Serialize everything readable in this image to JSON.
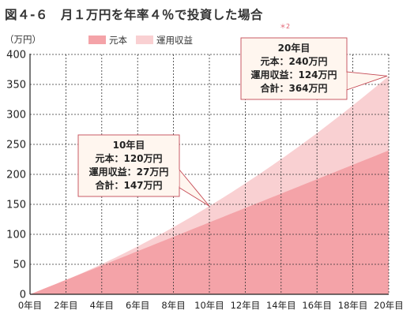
{
  "title": "図４-６　月１万円を年率４％で投資した場合",
  "note_mark": "＊2",
  "chart_data": {
    "type": "area",
    "stacked": true,
    "x": [
      0,
      2,
      4,
      6,
      8,
      10,
      12,
      14,
      16,
      18,
      20
    ],
    "x_tick_labels": [
      "0年目",
      "2年目",
      "4年目",
      "6年目",
      "8年目",
      "10年目",
      "12年目",
      "14年目",
      "16年目",
      "18年目",
      "20年目"
    ],
    "ylabel": "（万円）",
    "ylim": [
      0,
      400
    ],
    "y_ticks": [
      0,
      50,
      100,
      150,
      200,
      250,
      300,
      350,
      400
    ],
    "grid": true,
    "legend_position": "top-center",
    "series": [
      {
        "name": "元本",
        "color": "#f4a3a8",
        "values": [
          0,
          24,
          48,
          72,
          96,
          120,
          144,
          168,
          192,
          216,
          240
        ]
      },
      {
        "name": "運用収益",
        "color": "#f9d0d2",
        "values": [
          0,
          1,
          4,
          9,
          16,
          27,
          40,
          56,
          75,
          97,
          124
        ]
      }
    ],
    "annotations": [
      {
        "at_x": 10,
        "at_y": 147,
        "lines": [
          "10年目",
          "元本：120万円",
          "運用収益：27万円",
          "合計：147万円"
        ]
      },
      {
        "at_x": 20,
        "at_y": 364,
        "lines": [
          "20年目",
          "元本：240万円",
          "運用収益：124万円",
          "合計：364万円"
        ]
      }
    ]
  }
}
